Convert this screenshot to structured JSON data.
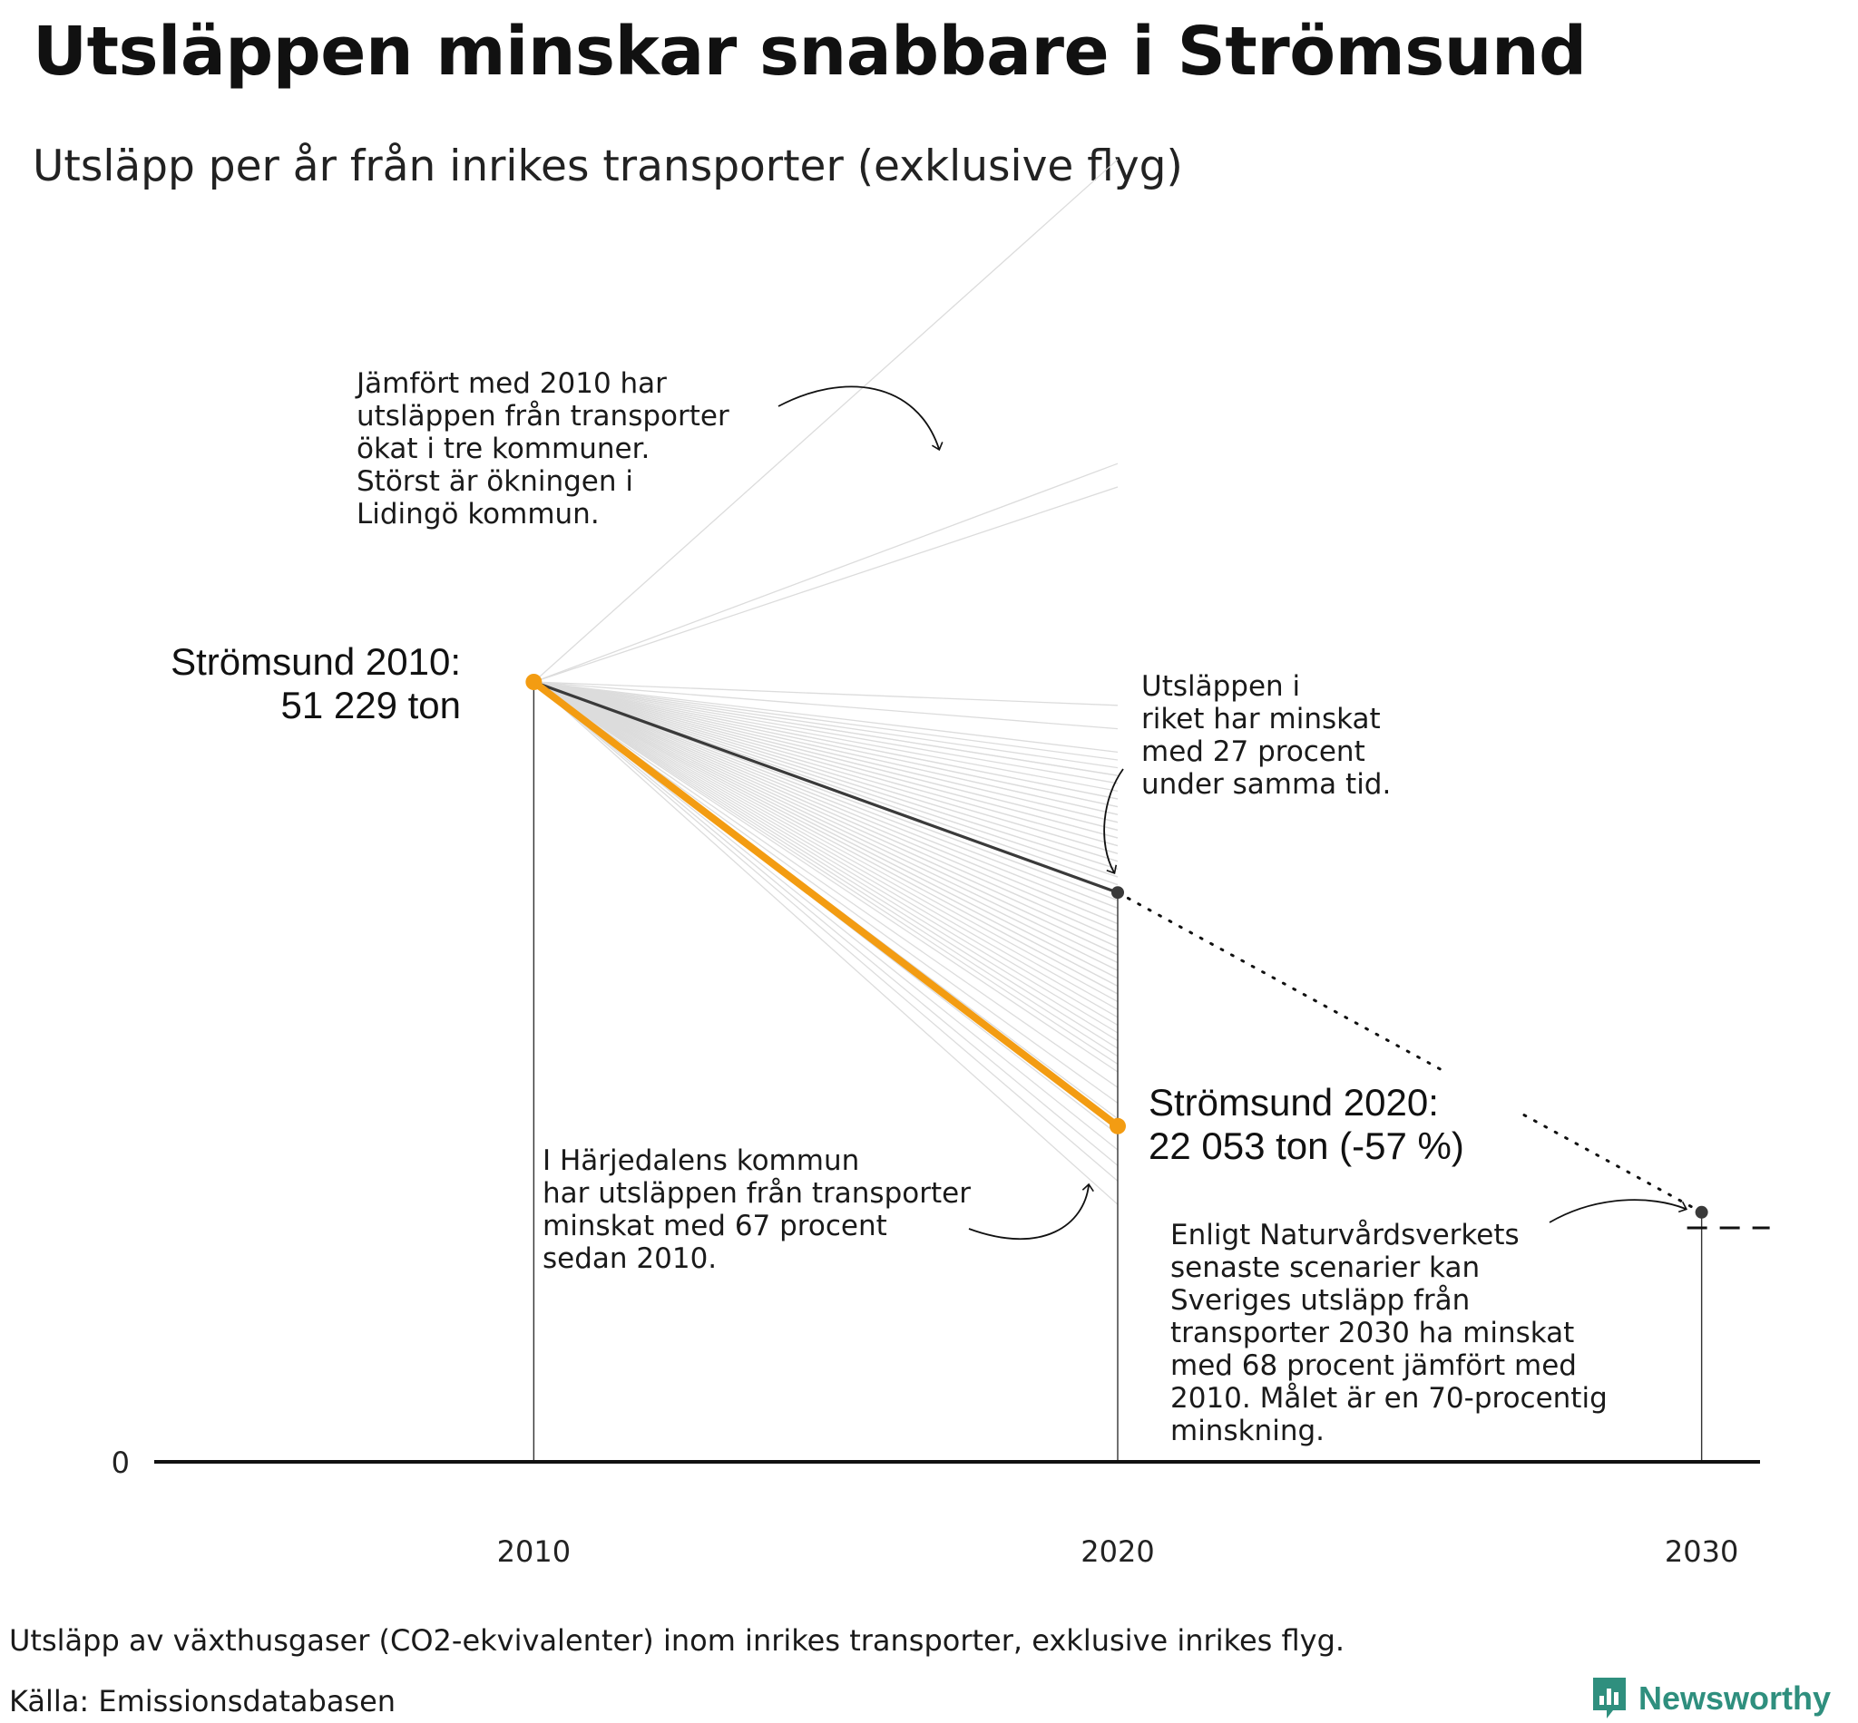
{
  "title": "Utsläppen minskar snabbare i Strömsund",
  "subtitle": "Utsläpp per år från inrikes transporter (exklusive flyg)",
  "footer": {
    "note": "Utsläpp av växthusgaser (CO2-ekvivalenter) inom inrikes transporter, exklusive inrikes flyg.",
    "source": "Källa: Emissionsdatabasen",
    "brand": "Newsworthy"
  },
  "colors": {
    "highlight": "#f39c12",
    "national": "#3a3a3a",
    "background_lines": "#dcdcdc",
    "axis": "#111111",
    "brand": "#2f8f7e"
  },
  "annotations": {
    "increase": [
      "Jämfört med 2010 har",
      "utsläppen från transporter",
      "ökat i tre kommuner.",
      "Störst är ökningen i",
      "Lidingö kommun."
    ],
    "national": [
      "Utsläppen i",
      "riket har minskat",
      "med 27 procent",
      "under samma tid."
    ],
    "harjedalen": [
      "I Härjedalens kommun",
      "har utsläppen från transporter",
      "minskat med 67 procent",
      "sedan 2010."
    ],
    "scenario": [
      "Enligt Naturvårdsverkets",
      "senaste scenarier kan",
      "Sveriges utsläpp från",
      "transporter 2030 ha minskat",
      "med 68 procent jämfört med",
      "2010. Målet är en 70-procentig",
      "minskning."
    ],
    "start_label": [
      "Strömsund 2010:",
      "51 229 ton"
    ],
    "end_label": [
      "Strömsund 2020:",
      "22 053 ton (-57 %)"
    ]
  },
  "chart_data": {
    "type": "line",
    "title": "Utsläppen minskar snabbare i Strömsund",
    "subtitle": "Utsläpp per år från inrikes transporter (exklusive flyg)",
    "x_ticks": [
      2010,
      2020,
      2030
    ],
    "y_ticks": [
      0
    ],
    "xlim": [
      2003.5,
      2031
    ],
    "ylim": [
      0,
      51229
    ],
    "highlight_series": {
      "name": "Strömsund",
      "x": [
        2010,
        2020
      ],
      "values": [
        51229,
        22053
      ],
      "change_pct": -57
    },
    "national_series": {
      "change_pct_2020": -27,
      "projection_2030_change_pct": -68,
      "target_2030_change_pct": -70
    },
    "municipality_change_pct_2010_2020": [
      67,
      28,
      25,
      -3,
      -6,
      -9,
      -10,
      -11,
      -12,
      -12,
      -13,
      -14,
      -15,
      -15,
      -16,
      -16,
      -17,
      -17,
      -18,
      -18,
      -19,
      -19,
      -20,
      -20,
      -21,
      -21,
      -22,
      -22,
      -23,
      -23,
      -24,
      -24,
      -25,
      -25,
      -26,
      -26,
      -27,
      -27,
      -28,
      -28,
      -29,
      -29,
      -30,
      -30,
      -31,
      -31,
      -32,
      -32,
      -33,
      -33,
      -34,
      -34,
      -35,
      -35,
      -36,
      -36,
      -37,
      -37,
      -38,
      -38,
      -39,
      -39,
      -40,
      -40,
      -41,
      -42,
      -43,
      -44,
      -45,
      -46,
      -47,
      -48,
      -49,
      -50,
      -52,
      -54,
      -56,
      -58,
      -60,
      -62,
      -64,
      -67
    ]
  }
}
